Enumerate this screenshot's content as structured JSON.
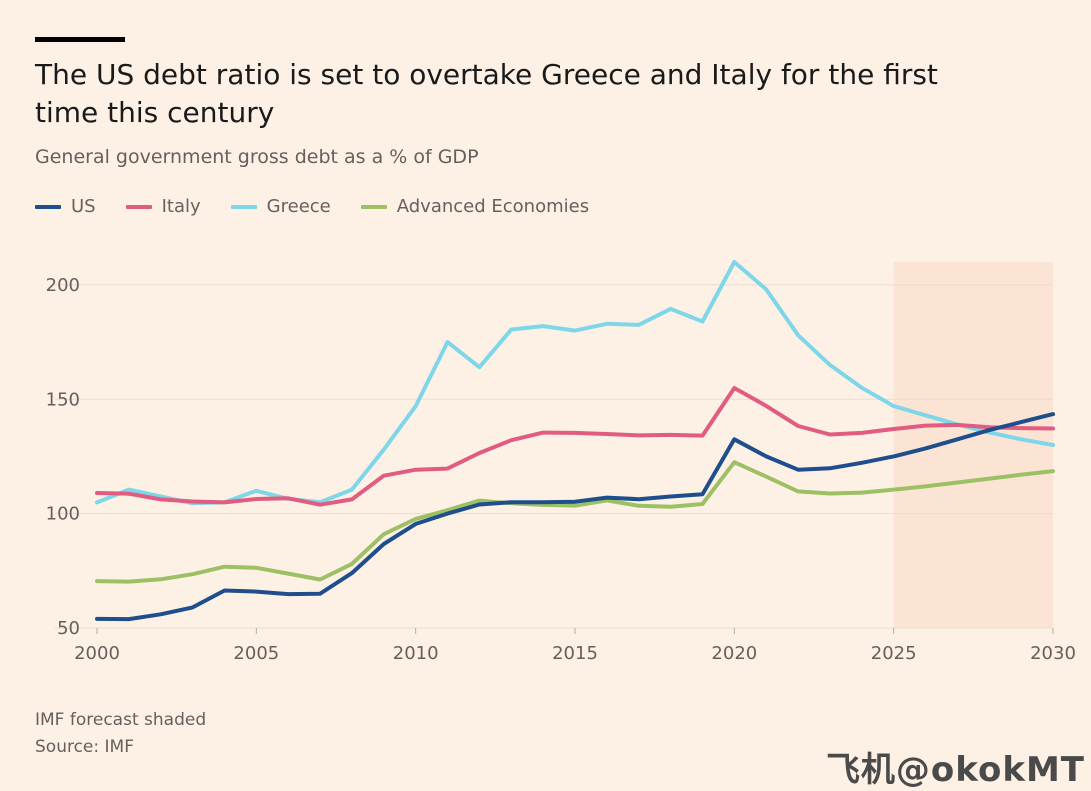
{
  "title": "The US debt ratio is set to overtake Greece and Italy for the first time this century",
  "subtitle": "General government gross debt as a % of GDP",
  "footnote": "IMF forecast shaded",
  "source": "Source: IMF",
  "watermark": "飞机@okokMT",
  "colors": {
    "US": "#1f4e8c",
    "Italy": "#e05c80",
    "Greece": "#7fd6e8",
    "Advanced Economies": "#9dc064",
    "forecast_shade": "#fbe4d4",
    "grid": "#e9ddd1"
  },
  "chart_data": {
    "type": "line",
    "x": [
      2000,
      2001,
      2002,
      2003,
      2004,
      2005,
      2006,
      2007,
      2008,
      2009,
      2010,
      2011,
      2012,
      2013,
      2014,
      2015,
      2016,
      2017,
      2018,
      2019,
      2020,
      2021,
      2022,
      2023,
      2024,
      2025,
      2026,
      2027,
      2028,
      2029,
      2030
    ],
    "series": [
      {
        "name": "US",
        "values": [
          54,
          53.9,
          56,
          59,
          66.4,
          65.9,
          64.8,
          65,
          74,
          86.7,
          95.5,
          100,
          104,
          105,
          105,
          105.2,
          107,
          106.3,
          107.5,
          108.5,
          132.5,
          125,
          119.2,
          119.8,
          122.2,
          125,
          128.5,
          132.5,
          136.5,
          140,
          143.5
        ]
      },
      {
        "name": "Italy",
        "values": [
          109,
          108.7,
          106.2,
          105.3,
          104.9,
          106.4,
          106.7,
          103.9,
          106.2,
          116.6,
          119.2,
          119.7,
          126.5,
          132.1,
          135.4,
          135.3,
          134.8,
          134.2,
          134.4,
          134.1,
          154.9,
          147.1,
          138.3,
          134.6,
          135.3,
          137,
          138.5,
          138.8,
          137.8,
          137.4,
          137.2
        ]
      },
      {
        "name": "Greece",
        "values": [
          104.9,
          110.5,
          107.5,
          104.5,
          105,
          110,
          106.5,
          105,
          110.5,
          128,
          147,
          175,
          164,
          180.5,
          182,
          180,
          183,
          182.5,
          189.5,
          184,
          210,
          198,
          178,
          165,
          155,
          147,
          143,
          139,
          135.5,
          132.5,
          130
        ]
      },
      {
        "name": "Advanced Economies",
        "values": [
          70.5,
          70.3,
          71.3,
          73.5,
          76.8,
          76.3,
          73.8,
          71.2,
          78,
          91,
          97.7,
          101.5,
          105.7,
          104.5,
          103.8,
          103.5,
          105.8,
          103.4,
          103,
          104.2,
          122.5,
          116.2,
          109.7,
          108.8,
          109.2,
          110.5,
          111.9,
          113.6,
          115.3,
          117,
          118.6
        ]
      }
    ],
    "yticks": [
      50,
      100,
      150,
      200
    ],
    "xticks": [
      2000,
      2005,
      2010,
      2015,
      2020,
      2025,
      2030
    ],
    "ylim": [
      50,
      210
    ],
    "xlim": [
      2000,
      2030
    ],
    "forecast_start": 2025,
    "legend_position": "top-left",
    "grid": true
  }
}
